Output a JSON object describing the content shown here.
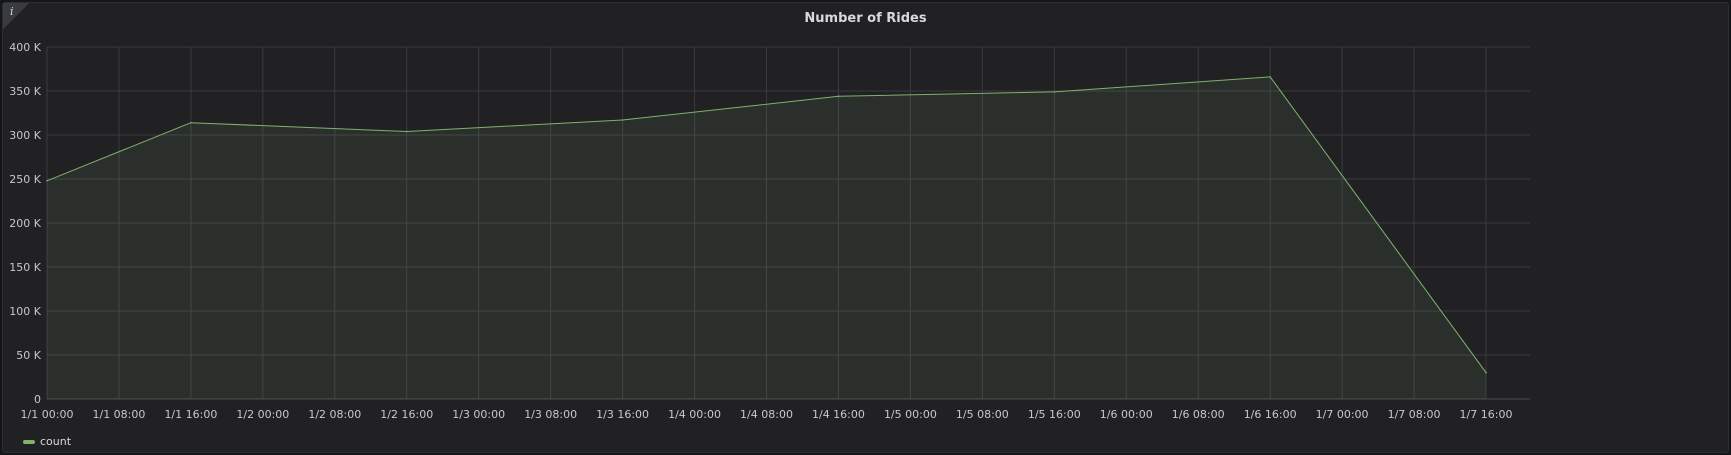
{
  "panel": {
    "title": "Number of Rides",
    "info_icon": "i"
  },
  "legend": {
    "series_name": "count",
    "series_color": "#7eb26d"
  },
  "chart_data": {
    "type": "area",
    "title": "Number of Rides",
    "xlabel": "",
    "ylabel": "",
    "ylim": [
      0,
      400000
    ],
    "y_ticks": [
      0,
      50000,
      100000,
      150000,
      200000,
      250000,
      300000,
      350000,
      400000
    ],
    "y_tick_labels": [
      "0",
      "50 K",
      "100 K",
      "150 K",
      "200 K",
      "250 K",
      "300 K",
      "350 K",
      "400 K"
    ],
    "x_ticks": [
      "1/1 00:00",
      "1/1 08:00",
      "1/1 16:00",
      "1/2 00:00",
      "1/2 08:00",
      "1/2 16:00",
      "1/3 00:00",
      "1/3 08:00",
      "1/3 16:00",
      "1/4 00:00",
      "1/4 08:00",
      "1/4 16:00",
      "1/5 00:00",
      "1/5 08:00",
      "1/5 16:00",
      "1/6 00:00",
      "1/6 08:00",
      "1/6 16:00",
      "1/7 00:00",
      "1/7 08:00",
      "1/7 16:00"
    ],
    "grid": true,
    "legend_position": "bottom-left",
    "series": [
      {
        "name": "count",
        "color": "#7eb26d",
        "x": [
          "1/1 00:00",
          "1/1 16:00",
          "1/2 16:00",
          "1/3 16:00",
          "1/4 16:00",
          "1/5 16:00",
          "1/6 16:00",
          "1/7 16:00"
        ],
        "values": [
          248000,
          314000,
          304000,
          317000,
          344000,
          349000,
          366000,
          30000
        ]
      }
    ]
  }
}
